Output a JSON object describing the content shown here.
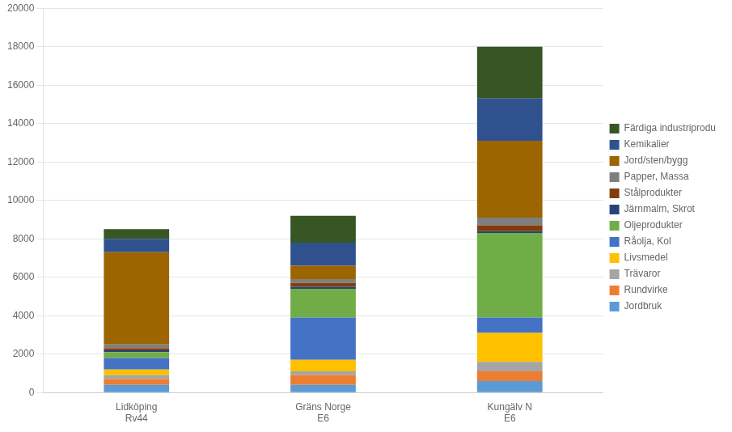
{
  "chart_data": {
    "type": "bar",
    "stacked": true,
    "categories": [
      "Lidköping\nRv44",
      "Gräns Norge\nE6",
      "Kungälv N\nE6"
    ],
    "series": [
      {
        "name": "Jordbruk",
        "color": "#5B9BD5",
        "values": [
          400,
          400,
          600
        ]
      },
      {
        "name": "Rundvirke",
        "color": "#ED7D31",
        "values": [
          300,
          500,
          500
        ]
      },
      {
        "name": "Trävaror",
        "color": "#A5A5A5",
        "values": [
          200,
          200,
          500
        ]
      },
      {
        "name": "Livsmedel",
        "color": "#FFC000",
        "values": [
          300,
          600,
          1500
        ]
      },
      {
        "name": "Råolja, Kol",
        "color": "#4472C4",
        "values": [
          600,
          2200,
          800
        ]
      },
      {
        "name": "Oljeprodukter",
        "color": "#70AD47",
        "values": [
          300,
          1500,
          4400
        ]
      },
      {
        "name": "Järnmalm, Skrot",
        "color": "#264478",
        "values": [
          100,
          100,
          100
        ]
      },
      {
        "name": "Stålprodukter",
        "color": "#843C0C",
        "values": [
          100,
          200,
          300
        ]
      },
      {
        "name": "Papper, Massa",
        "color": "#7F7F7F",
        "values": [
          200,
          200,
          400
        ]
      },
      {
        "name": "Jord/sten/bygg",
        "color": "#9C6500",
        "values": [
          4800,
          700,
          4000
        ]
      },
      {
        "name": "Kemikalier",
        "color": "#2F528F",
        "values": [
          700,
          1200,
          2200
        ]
      },
      {
        "name": "Färdiga industriprodu",
        "color": "#375623",
        "values": [
          500,
          1400,
          2700
        ]
      }
    ],
    "ylim": [
      0,
      20000
    ],
    "yticks": [
      0,
      2000,
      4000,
      6000,
      8000,
      10000,
      12000,
      14000,
      16000,
      18000,
      20000
    ],
    "grid": true,
    "legend": "right"
  }
}
